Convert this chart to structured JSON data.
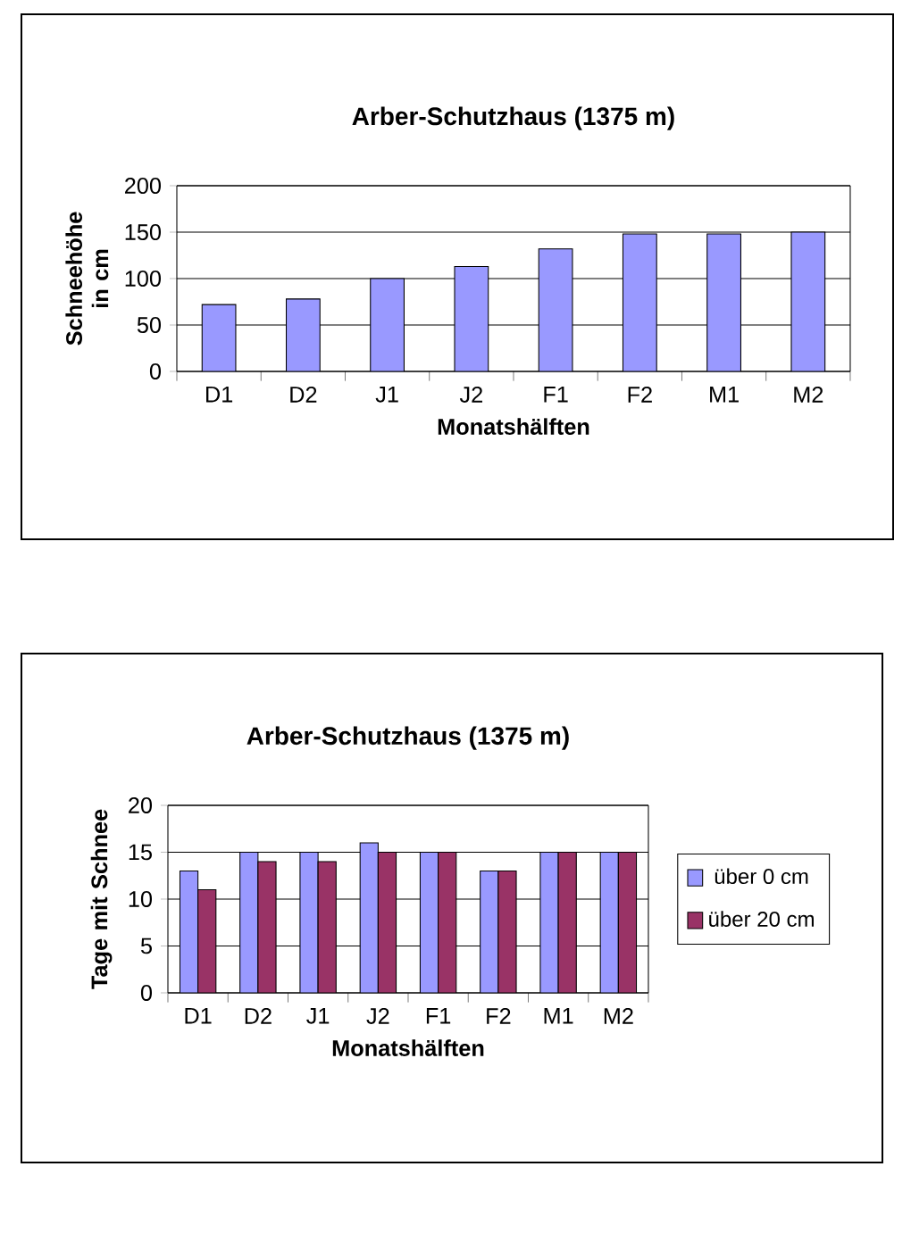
{
  "chart_data": [
    {
      "type": "bar",
      "title": "Arber-Schutzhaus (1375 m)",
      "xlabel": "Monatshälften",
      "ylabel": "Schneehöhe in cm",
      "categories": [
        "D1",
        "D2",
        "J1",
        "J2",
        "F1",
        "F2",
        "M1",
        "M2"
      ],
      "series": [
        {
          "color": "#9999ff",
          "values": [
            72,
            78,
            100,
            113,
            132,
            148,
            148,
            150
          ]
        }
      ],
      "ylim": [
        0,
        200
      ],
      "yticks": [
        0,
        50,
        100,
        150,
        200
      ],
      "grid": "y",
      "legend": false
    },
    {
      "type": "bar",
      "title": "Arber-Schutzhaus (1375 m)",
      "xlabel": "Monatshälften",
      "ylabel": "Tage mit Schnee",
      "categories": [
        "D1",
        "D2",
        "J1",
        "J2",
        "F1",
        "F2",
        "M1",
        "M2"
      ],
      "series": [
        {
          "name": "über 0 cm",
          "color": "#9999ff",
          "values": [
            13,
            15,
            15,
            16,
            15,
            13,
            15,
            15
          ]
        },
        {
          "name": "über 20 cm",
          "color": "#993366",
          "values": [
            11,
            14,
            14,
            15,
            15,
            13,
            15,
            15
          ]
        }
      ],
      "ylim": [
        0,
        20
      ],
      "yticks": [
        0,
        5,
        10,
        15,
        20
      ],
      "grid": "y",
      "legend": "right"
    }
  ]
}
